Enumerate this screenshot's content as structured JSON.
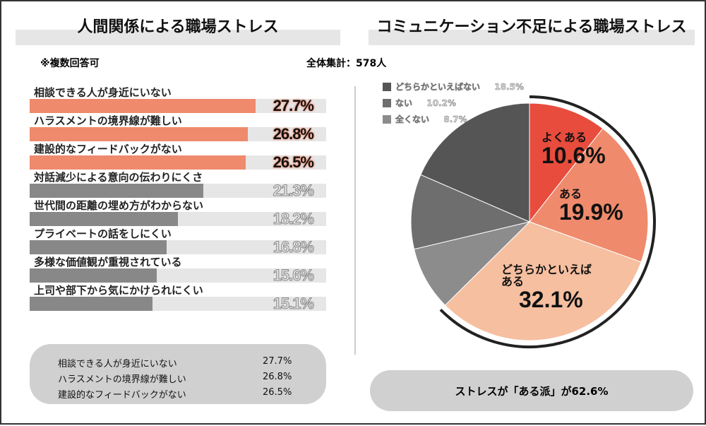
{
  "left": {
    "title": "人間関係による職場ストレス",
    "note": "※複数回答可",
    "bars": [
      {
        "label": "相談できる人が身近にいない",
        "value": 27.7,
        "display": "27.7%",
        "highlight": true
      },
      {
        "label": "ハラスメントの境界線が難しい",
        "value": 26.8,
        "display": "26.8%",
        "highlight": true
      },
      {
        "label": "建設的なフィードバックがない",
        "value": 26.5,
        "display": "26.5%",
        "highlight": true
      },
      {
        "label": "対話減少による意向の伝わりにくさ",
        "value": 21.3,
        "display": "21.3%",
        "highlight": false
      },
      {
        "label": "世代間の距離の埋め方がわからない",
        "value": 18.2,
        "display": "18.2%",
        "highlight": false
      },
      {
        "label": "プライベートの話をしにくい",
        "value": 16.8,
        "display": "16.8%",
        "highlight": false
      },
      {
        "label": "多様な価値観が重視されている",
        "value": 15.6,
        "display": "15.6%",
        "highlight": false
      },
      {
        "label": "上司や部下から気にかけられにくい",
        "value": 15.1,
        "display": "15.1%",
        "highlight": false
      }
    ],
    "summary": [
      {
        "label": "相談できる人が身近にいない",
        "value": "27.7%"
      },
      {
        "label": "ハラスメントの境界線が難しい",
        "value": "26.8%"
      },
      {
        "label": "建設的なフィードバックがない",
        "value": "26.5%"
      }
    ]
  },
  "right": {
    "title": "コミュニケーション不足による職場ストレス",
    "total": "全体集計：578人",
    "summary": "ストレスが「ある派」が62.6%"
  },
  "colors": {
    "bar_highlight": "#ef8a6c",
    "bar_other": "#888888",
    "track": "#e6e6e6"
  },
  "chart_data": [
    {
      "type": "bar",
      "orientation": "horizontal",
      "title": "人間関係による職場ストレス",
      "categories": [
        "相談できる人が身近にいない",
        "ハラスメントの境界線が難しい",
        "建設的なフィードバックがない",
        "対話減少による意向の伝わりにくさ",
        "世代間の距離の埋め方がわからない",
        "プライベートの話をしにくい",
        "多様な価値観が重視されている",
        "上司や部下から気にかけられにくい"
      ],
      "values": [
        27.7,
        26.8,
        26.5,
        21.3,
        18.2,
        16.8,
        15.6,
        15.1
      ],
      "unit": "%"
    },
    {
      "type": "pie",
      "title": "コミュニケーション不足による職場ストレス",
      "legend_position": "top-left",
      "slices": [
        {
          "label": "よくある",
          "value": 10.6,
          "display": "10.6%",
          "color": "#e84c3d"
        },
        {
          "label": "ある",
          "value": 19.9,
          "display": "19.9%",
          "color": "#ef8a6c"
        },
        {
          "label": "どちらかといえばある",
          "label_lines": [
            "どちらかといえば",
            "ある"
          ],
          "value": 32.1,
          "display": "32.1%",
          "color": "#f5bfa0"
        },
        {
          "label": "全くない",
          "value": 8.7,
          "display": "8.7%",
          "color": "#8c8c8c"
        },
        {
          "label": "ない",
          "value": 10.2,
          "display": "10.2%",
          "color": "#6e6e6e"
        },
        {
          "label": "どちらかといえばない",
          "value": 18.5,
          "display": "18.5%",
          "color": "#555555"
        }
      ]
    }
  ]
}
